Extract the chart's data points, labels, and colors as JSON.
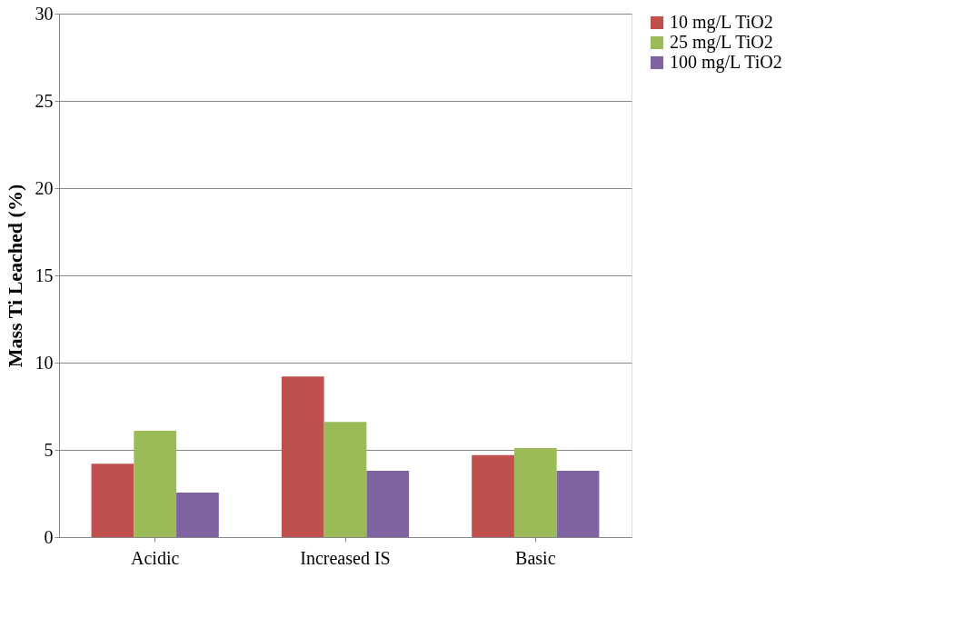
{
  "chart_data": {
    "type": "bar",
    "ylabel": "Mass Ti Leached (%)",
    "categories": [
      "Acidic",
      "Increased IS",
      "Basic"
    ],
    "series": [
      {
        "name": "10 mg/L TiO2",
        "color": "#c0504d",
        "values": [
          4.2,
          9.2,
          4.7
        ]
      },
      {
        "name": "25 mg/L TiO2",
        "color": "#9bbb59",
        "values": [
          6.1,
          6.6,
          5.1
        ]
      },
      {
        "name": "100 mg/L TiO2",
        "color": "#8064a2",
        "values": [
          2.55,
          3.8,
          3.8
        ]
      }
    ],
    "ylim": [
      0,
      30
    ],
    "yticks": [
      0,
      5,
      10,
      15,
      20,
      25,
      30
    ],
    "grid": "y",
    "legend": "right"
  }
}
